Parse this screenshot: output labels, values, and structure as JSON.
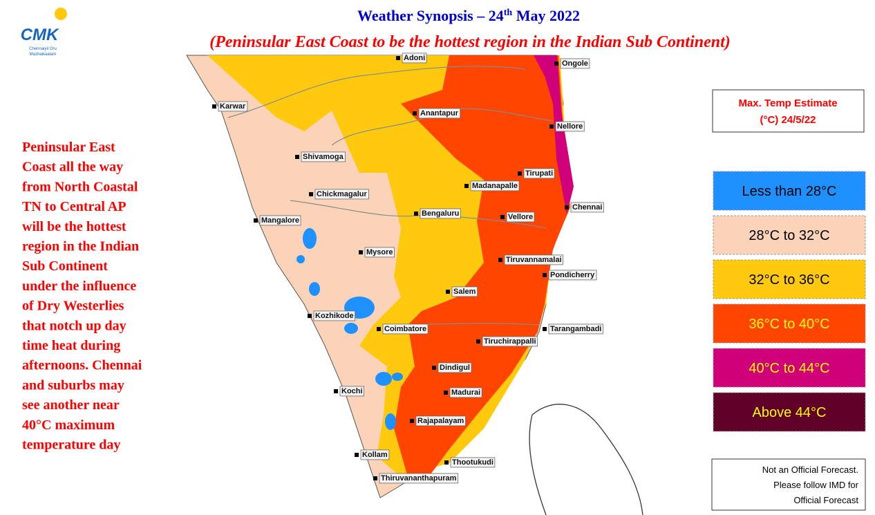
{
  "logo": {
    "mark": "CMK",
    "lines": [
      "Chennaiyil Oru",
      "Mazhaikaalam"
    ]
  },
  "header": {
    "title": {
      "pre": "Weather Synopsis – 24",
      "sup": "th",
      "post": " May 2022"
    },
    "subtitle": "(Peninsular East Coast to be the hottest region in the Indian Sub Continent)"
  },
  "description": [
    "Peninsular East",
    "Coast all the way",
    "from North Coastal",
    "TN to Central AP",
    "will be the hottest",
    "region in the Indian",
    "Sub Continent",
    "under the influence",
    "of Dry Westerlies",
    "that notch up day",
    "time heat during",
    "afternoons. Chennai",
    "and suburbs may",
    "see another near",
    "40°C maximum",
    "temperature day"
  ],
  "legend": {
    "title": [
      "Max. Temp Estimate",
      "(°C) 24/5/22"
    ],
    "items": [
      {
        "label": "Less than 28°C",
        "color": "#1e90ff",
        "text_color": "#000000"
      },
      {
        "label": "28°C to 32°C",
        "color": "#fad3b8",
        "text_color": "#000000"
      },
      {
        "label": "32°C to 36°C",
        "color": "#ffc90e",
        "text_color": "#000000"
      },
      {
        "label": "36°C to 40°C",
        "color": "#ff4500",
        "text_color": "#ffff00"
      },
      {
        "label": "40°C to 44°C",
        "color": "#d0007a",
        "text_color": "#ffff00"
      },
      {
        "label": "Above 44°C",
        "color": "#600028",
        "text_color": "#ffff00"
      }
    ]
  },
  "cities": [
    "Adoni",
    "Ongole",
    "Karwar",
    "Anantapur",
    "Nellore",
    "Shivamoga",
    "Tirupati",
    "Madanapalle",
    "Chickmagalur",
    "Chennai",
    "Bengaluru",
    "Vellore",
    "Mangalore",
    "Mysore",
    "Tiruvannamalai",
    "Pondicherry",
    "Salem",
    "Kozhikode",
    "Coimbatore",
    "Tarangambadi",
    "Tiruchirappalli",
    "Dindigul",
    "Kochi",
    "Madurai",
    "Rajapalayam",
    "Kollam",
    "Thootukudi",
    "Thiruvananthapuram"
  ],
  "disclaimer": [
    "Not an Official Forecast.",
    "Please follow IMD for",
    "Official Forecast"
  ]
}
